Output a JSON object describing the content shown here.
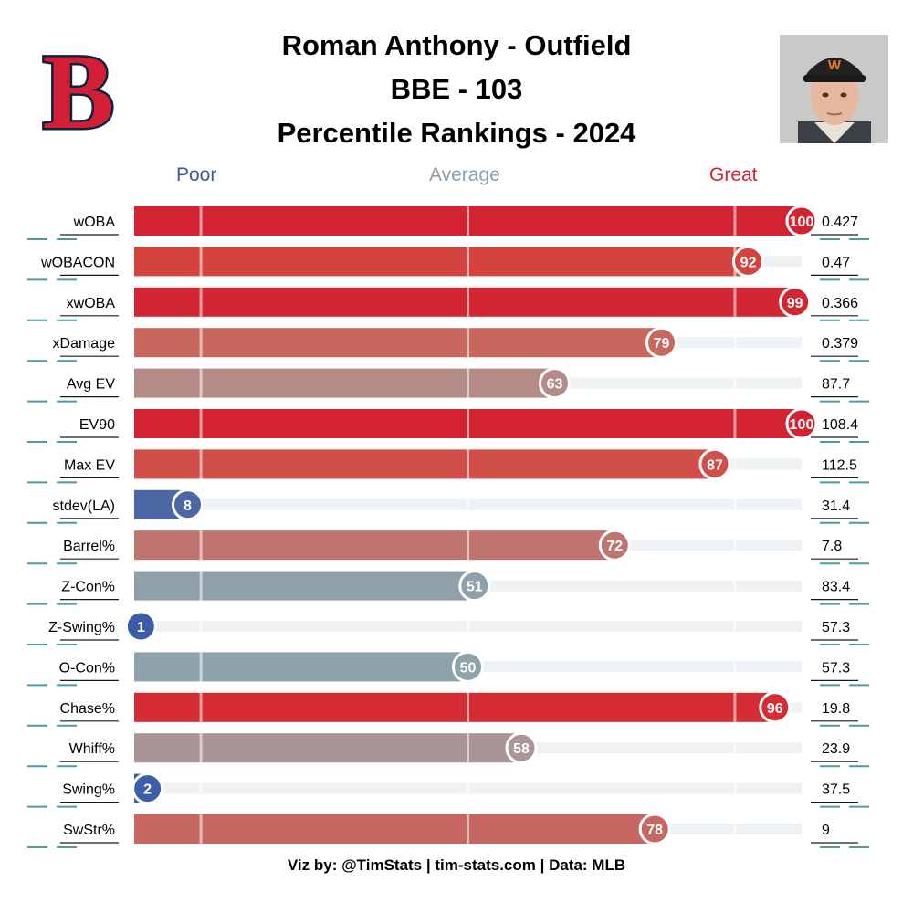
{
  "header": {
    "title_lines": [
      "Roman Anthony - Outfield",
      "BBE - 103",
      "Percentile Rankings - 2024"
    ],
    "logo_icon": "red-sox-b-logo-icon",
    "photo_icon": "player-headshot-icon"
  },
  "scale": {
    "poor": "Poor",
    "average": "Average",
    "great": "Great",
    "poor_color": "#3d5a98",
    "average_color": "#8fa0ad",
    "great_color": "#d42330"
  },
  "footer": {
    "text": "Viz by: @TimStats | tim-stats.com | Data: MLB"
  },
  "chart_data": {
    "type": "bar",
    "orientation": "horizontal",
    "title": "Roman Anthony - Outfield",
    "subtitle": "BBE - 103 | Percentile Rankings - 2024",
    "xlim": [
      0,
      100
    ],
    "categories": [
      "wOBA",
      "wOBACON",
      "xwOBA",
      "xDamage",
      "Avg EV",
      "EV90",
      "Max EV",
      "stdev(LA)",
      "Barrel%",
      "Z-Con%",
      "Z-Swing%",
      "O-Con%",
      "Chase%",
      "Whiff%",
      "Swing%",
      "SwStr%"
    ],
    "series": [
      {
        "values": [
          100,
          92,
          99,
          79,
          63,
          100,
          87,
          8,
          72,
          51,
          1,
          50,
          96,
          58,
          2,
          78
        ]
      }
    ],
    "stat_values": [
      "0.427",
      "0.47",
      "0.366",
      "0.379",
      "87.7",
      "108.4",
      "112.5",
      "31.4",
      "7.8",
      "83.4",
      "57.3",
      "57.3",
      "19.8",
      "23.9",
      "37.5",
      "9"
    ],
    "bar_colors": [
      "#d42330",
      "#d5433f",
      "#d42632",
      "#c8675e",
      "#b48b87",
      "#d42330",
      "#d14e49",
      "#4c67a6",
      "#c07470",
      "#8fa0ab",
      "#3b5ca6",
      "#8ea2ab",
      "#d42b35",
      "#aa9596",
      "#3d5ea8",
      "#c66861"
    ],
    "reference_lines": [
      10,
      50,
      90
    ]
  }
}
